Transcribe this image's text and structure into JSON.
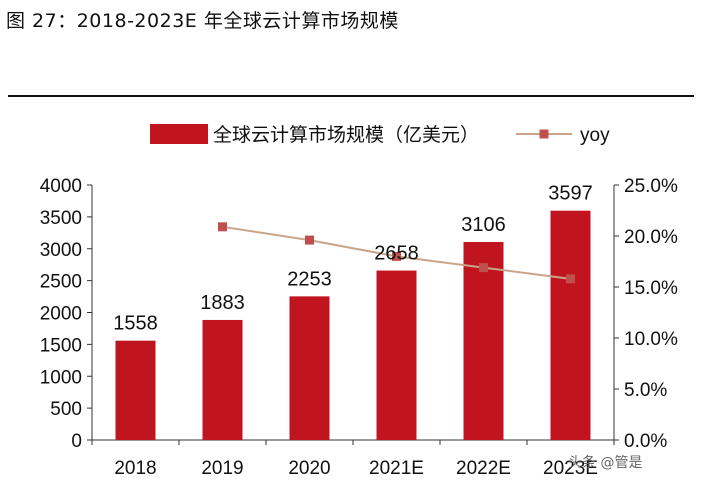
{
  "figure_title": "图 27：2018-2023E 年全球云计算市场规模",
  "watermark": "头条 @管是",
  "colors": {
    "bar": "#c0141e",
    "line": "#c8a58a",
    "marker": "#c0504d",
    "axis": "#333333",
    "text": "#111111"
  },
  "chart_data": {
    "type": "bar",
    "categories": [
      "2018",
      "2019",
      "2020",
      "2021E",
      "2022E",
      "2023E"
    ],
    "series": [
      {
        "name": "全球云计算市场规模（亿美元）",
        "type": "bar",
        "axis": "left",
        "values": [
          1558,
          1883,
          2253,
          2658,
          3106,
          3597
        ]
      },
      {
        "name": "yoy",
        "type": "line",
        "axis": "right",
        "values": [
          null,
          20.9,
          19.6,
          18.0,
          16.9,
          15.8
        ]
      }
    ],
    "data_labels": [
      "1558",
      "1883",
      "2253",
      "2658",
      "3106",
      "3597"
    ],
    "y_left": {
      "range": [
        0,
        4000
      ],
      "ticks": [
        "0",
        "500",
        "1000",
        "1500",
        "2000",
        "2500",
        "3000",
        "3500",
        "4000"
      ]
    },
    "y_right": {
      "range": [
        0,
        25
      ],
      "unit": "%",
      "ticks": [
        "0.0%",
        "5.0%",
        "10.0%",
        "15.0%",
        "20.0%",
        "25.0%"
      ]
    },
    "legend_position": "top-center",
    "grid": false
  }
}
